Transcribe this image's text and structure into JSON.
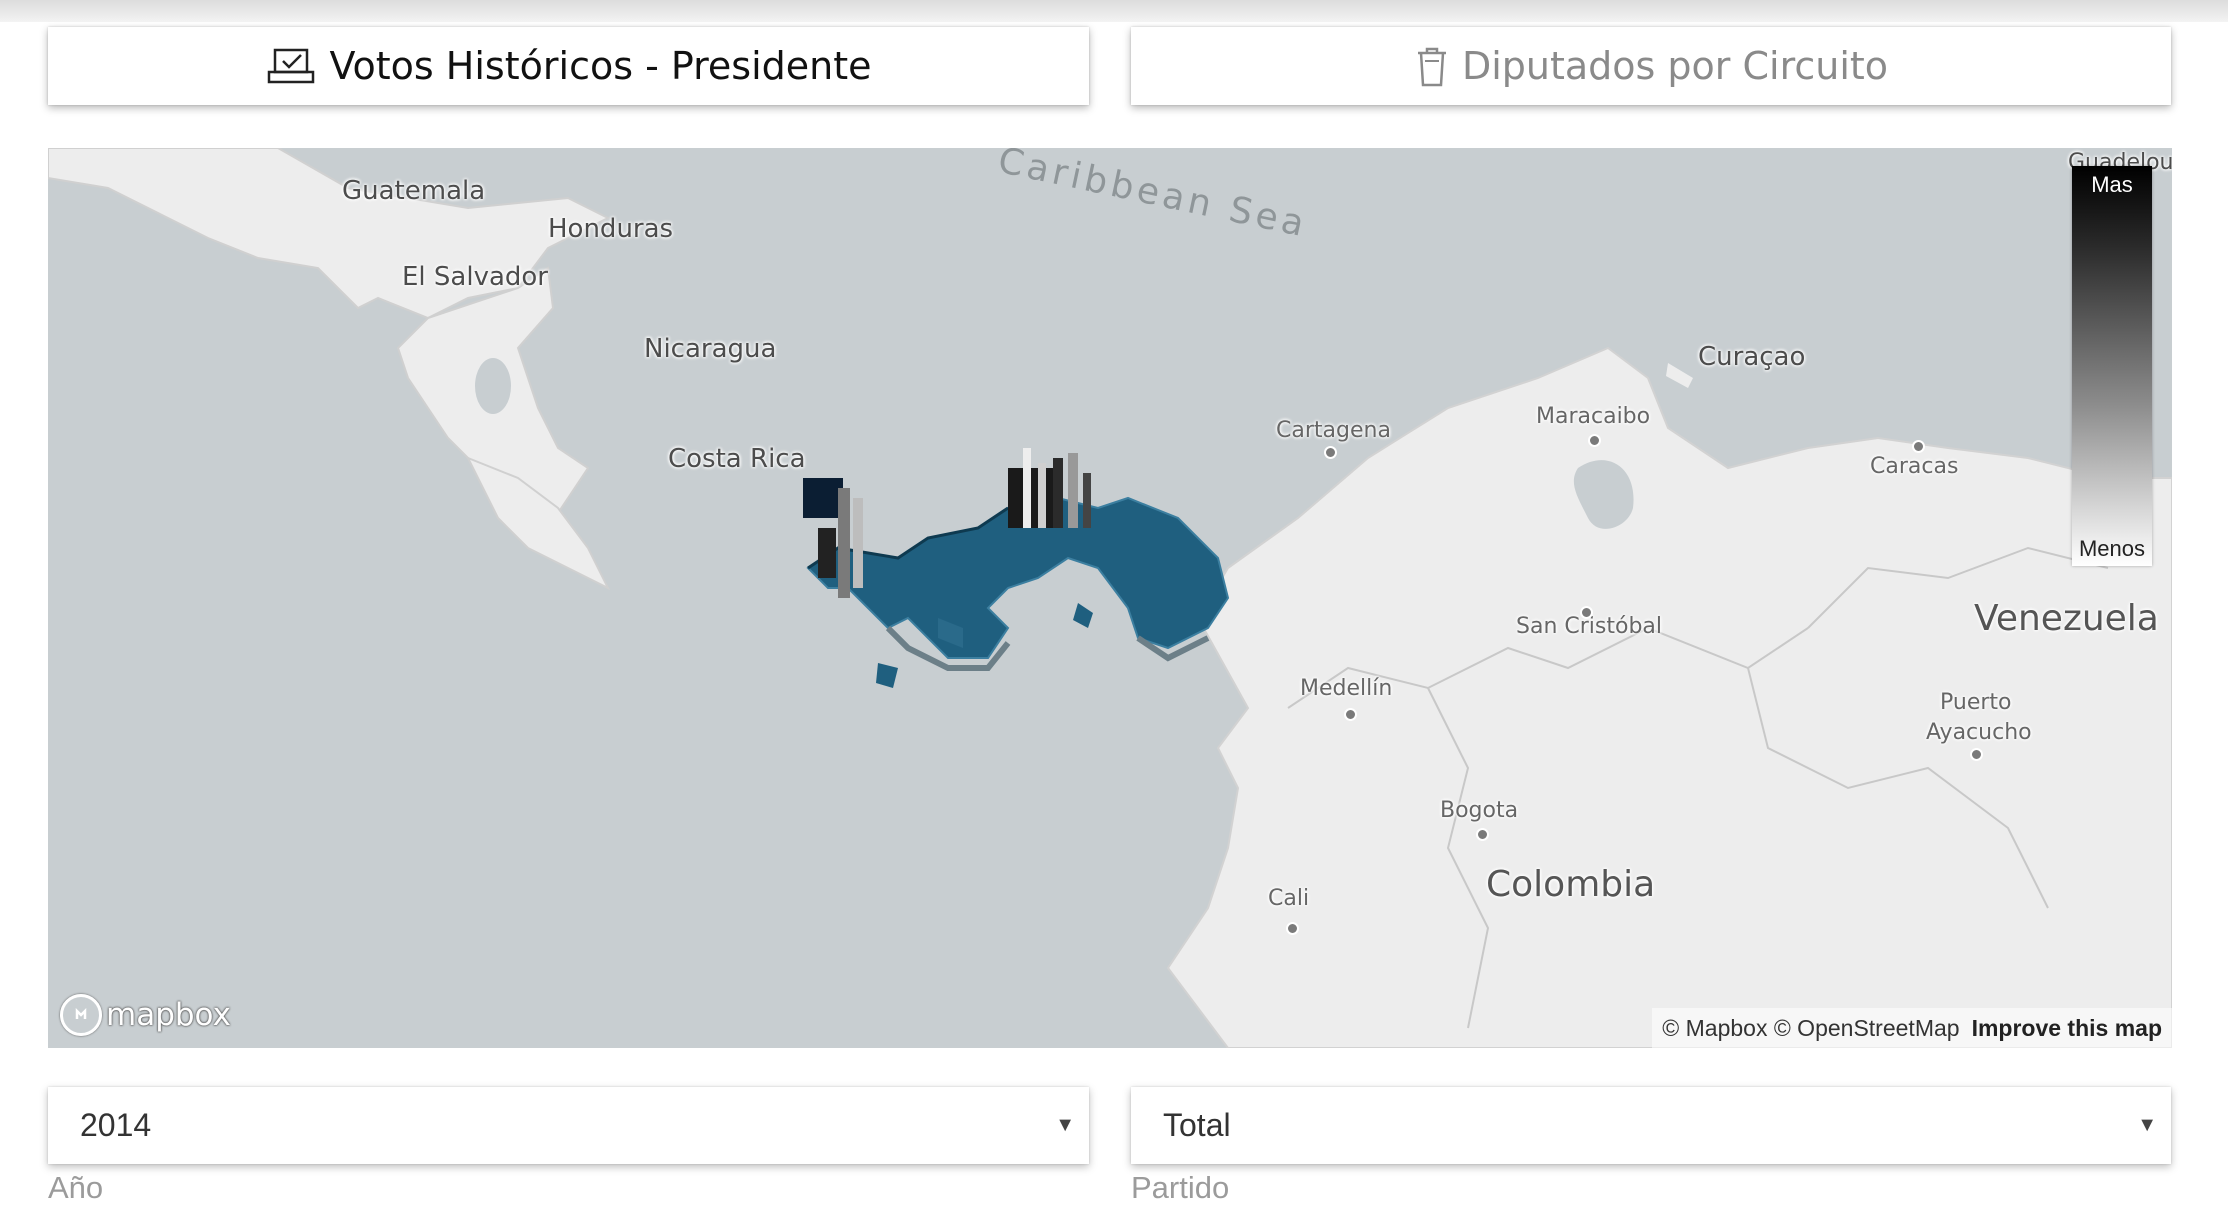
{
  "tabs": {
    "votos_label": "Votos Históricos - Presidente",
    "votos_icon": "ballot-box-icon",
    "diputados_label": "Diputados por Circuito",
    "diputados_icon": "trash-can-icon"
  },
  "map": {
    "sea_label": "Caribbean Sea",
    "countries": {
      "guatemala": "Guatemala",
      "honduras": "Honduras",
      "el_salvador": "El Salvador",
      "nicaragua": "Nicaragua",
      "costa_rica": "Costa Rica",
      "colombia": "Colombia",
      "venezuela": "Venezuela",
      "curacao": "Curaçao",
      "guadeloupe_partial": "Guadelou"
    },
    "cities": {
      "cartagena": "Cartagena",
      "maracaibo": "Maracaibo",
      "caracas": "Caracas",
      "san_cristobal": "San Cristóbal",
      "medellin": "Medellín",
      "puerto_ayacucho_1": "Puerto",
      "puerto_ayacucho_2": "Ayacucho",
      "bogota": "Bogota",
      "cali": "Cali"
    },
    "legend": {
      "high": "Mas",
      "low": "Menos"
    },
    "choropleth_color": "#1f5f7f",
    "brand": "mapbox",
    "attribution": "© Mapbox © OpenStreetMap",
    "improve": "Improve this map"
  },
  "filters": {
    "year_value": "2014",
    "year_caption": "Año",
    "party_value": "Total",
    "party_caption": "Partido"
  }
}
